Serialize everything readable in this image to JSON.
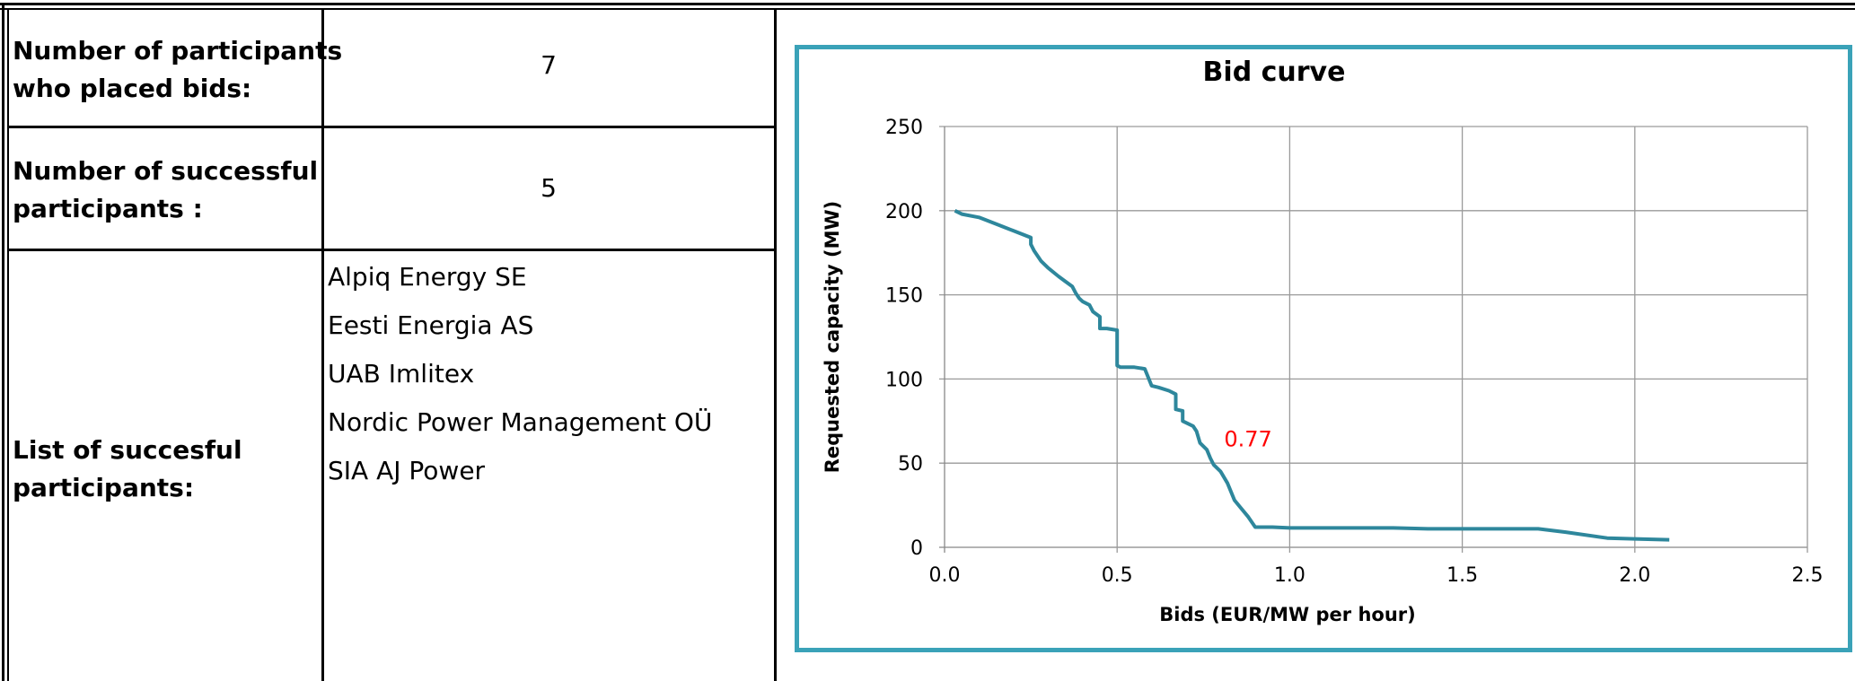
{
  "table": {
    "rows": [
      {
        "label_line1": "Number of participants",
        "label_line2": "who placed bids:",
        "value": "7"
      },
      {
        "label_line1": "Number of successful",
        "label_line2": "participants :",
        "value": "5"
      },
      {
        "label_line1": "List of succesful",
        "label_line2": "participants:"
      }
    ],
    "participants": [
      "Alpiq Energy SE",
      "Eesti Energia AS",
      "UAB Imlitex",
      "Nordic Power Management OÜ",
      "SIA AJ Power"
    ]
  },
  "chart_data": {
    "type": "line",
    "title": "Bid curve",
    "xlabel": "Bids (EUR/MW per hour)",
    "ylabel": "Requested capacity (MW)",
    "xlim": [
      0,
      2.5
    ],
    "ylim": [
      0,
      250
    ],
    "xticks": [
      "0.0",
      "0.5",
      "1.0",
      "1.5",
      "2.0",
      "2.5"
    ],
    "yticks": [
      "0",
      "50",
      "100",
      "150",
      "200",
      "250"
    ],
    "grid": true,
    "annotation": {
      "text": "0.77",
      "x": 0.81,
      "y": 60,
      "color": "#ff0000"
    },
    "series": [
      {
        "color": "#2e879c",
        "x": [
          0.03,
          0.05,
          0.1,
          0.15,
          0.2,
          0.25,
          0.25,
          0.26,
          0.28,
          0.3,
          0.33,
          0.35,
          0.37,
          0.38,
          0.39,
          0.4,
          0.42,
          0.43,
          0.45,
          0.45,
          0.47,
          0.5,
          0.5,
          0.5,
          0.51,
          0.52,
          0.55,
          0.58,
          0.6,
          0.62,
          0.65,
          0.67,
          0.67,
          0.69,
          0.69,
          0.7,
          0.72,
          0.73,
          0.74,
          0.76,
          0.77,
          0.78,
          0.8,
          0.82,
          0.84,
          0.86,
          0.88,
          0.9,
          0.91,
          0.95,
          1.0,
          1.1,
          1.2,
          1.3,
          1.4,
          1.5,
          1.6,
          1.72,
          1.8,
          1.92,
          2.0,
          2.1
        ],
        "y": [
          200,
          198,
          196,
          192,
          188,
          184,
          180,
          176,
          170,
          166,
          161,
          158,
          155,
          151,
          148,
          146,
          144,
          140,
          137,
          130,
          130,
          129,
          113,
          108,
          107,
          107,
          107,
          106,
          96,
          95,
          93,
          91,
          82,
          81,
          75,
          74,
          72,
          69,
          62,
          58,
          53,
          49,
          45,
          38,
          28,
          23,
          18,
          12,
          12,
          12,
          11.5,
          11.5,
          11.5,
          11.5,
          11,
          11,
          11,
          11,
          9,
          5.5,
          5,
          4.5
        ]
      }
    ]
  }
}
